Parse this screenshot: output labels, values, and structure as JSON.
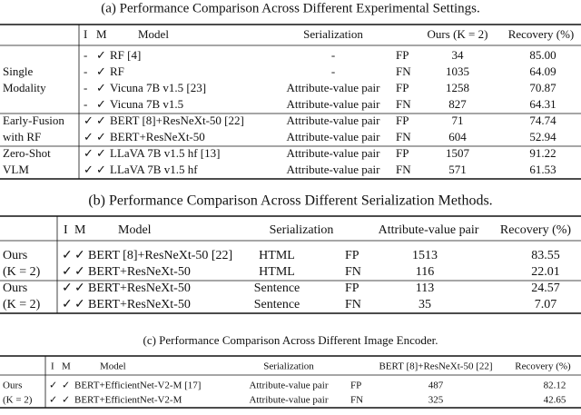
{
  "tables": [
    {
      "caption": "(a) Performance Comparison Across Different Experimental Settings.",
      "headers": [
        "I",
        "M",
        "Model",
        "Serialization",
        "Ours (K = 2)",
        "Recovery (%)"
      ],
      "groups": [
        {
          "label": [
            "Single",
            "Modality"
          ],
          "rows": [
            [
              "-",
              "✓",
              "RF [4]",
              "-",
              "FP",
              "34",
              "85.00"
            ],
            [
              "-",
              "✓",
              "RF",
              "-",
              "FN",
              "1035",
              "64.09"
            ],
            [
              "-",
              "✓",
              "Vicuna 7B v1.5 [23]",
              "Attribute-value pair",
              "FP",
              "1258",
              "70.87"
            ],
            [
              "-",
              "✓",
              "Vicuna 7B v1.5",
              "Attribute-value pair",
              "FN",
              "827",
              "64.31"
            ]
          ]
        },
        {
          "label": [
            "Early-Fusion",
            "with RF"
          ],
          "rows": [
            [
              "✓",
              "✓",
              "BERT [8]+ResNeXt-50 [22]",
              "Attribute-value pair",
              "FP",
              "71",
              "74.74"
            ],
            [
              "✓",
              "✓",
              "BERT+ResNeXt-50",
              "Attribute-value pair",
              "FN",
              "604",
              "52.94"
            ]
          ]
        },
        {
          "label": [
            "Zero-Shot",
            "VLM"
          ],
          "rows": [
            [
              "✓",
              "✓",
              "LLaVA 7B v1.5 hf [13]",
              "Attribute-value pair",
              "FP",
              "1507",
              "91.22"
            ],
            [
              "✓",
              "✓",
              "LLaVA 7B v1.5 hf",
              "Attribute-value pair",
              "FN",
              "571",
              "61.53"
            ]
          ]
        }
      ]
    },
    {
      "caption": "(b) Performance Comparison Across Different Serialization Methods.",
      "headers": [
        "I",
        "M",
        "Model",
        "Serialization",
        "Attribute-value pair",
        "Recovery (%)"
      ],
      "groups": [
        {
          "label": [
            "Ours",
            "(K = 2)"
          ],
          "rows": [
            [
              "✓",
              "✓",
              "BERT [8]+ResNeXt-50 [22]",
              "HTML",
              "FP",
              "1513",
              "83.55"
            ],
            [
              "✓",
              "✓",
              "BERT+ResNeXt-50",
              "HTML",
              "FN",
              "116",
              "22.01"
            ]
          ]
        },
        {
          "label": [
            "Ours",
            "(K = 2)"
          ],
          "rows": [
            [
              "✓",
              "✓",
              "BERT+ResNeXt-50",
              "Sentence",
              "FP",
              "113",
              "24.57"
            ],
            [
              "✓",
              "✓",
              "BERT+ResNeXt-50",
              "Sentence",
              "FN",
              "35",
              "7.07"
            ]
          ]
        }
      ]
    },
    {
      "caption": "(c) Performance Comparison Across Different Image Encoder.",
      "headers": [
        "I",
        "M",
        "Model",
        "Serialization",
        "BERT [8]+ResNeXt-50 [22]",
        "Recovery (%)"
      ],
      "groups": [
        {
          "label": [
            "Ours",
            "(K = 2)"
          ],
          "rows": [
            [
              "✓",
              "✓",
              "BERT+EfficientNet-V2-M [17]",
              "Attribute-value pair",
              "FP",
              "487",
              "82.12"
            ],
            [
              "✓",
              "✓",
              "BERT+EfficientNet-V2-M",
              "Attribute-value pair",
              "FN",
              "325",
              "42.65"
            ]
          ]
        }
      ]
    }
  ]
}
